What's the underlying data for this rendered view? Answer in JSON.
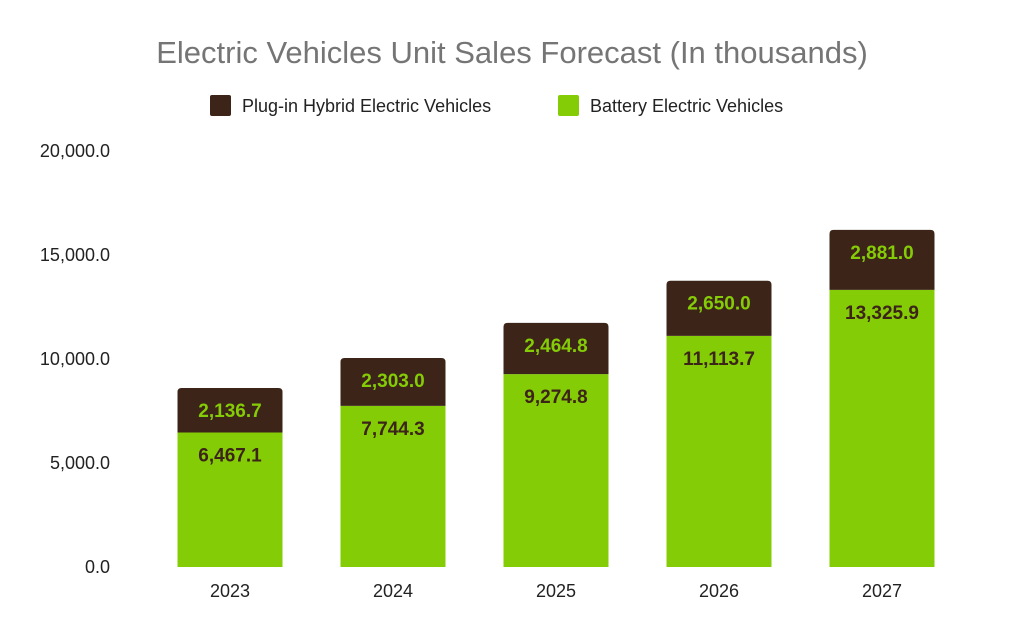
{
  "chart_data": {
    "type": "bar",
    "stacked": true,
    "title": "Electric Vehicles Unit Sales Forecast (In thousands)",
    "xlabel": "",
    "ylabel": "",
    "categories": [
      "2023",
      "2024",
      "2025",
      "2026",
      "2027"
    ],
    "series": [
      {
        "name": "Battery Electric Vehicles",
        "color": "#84cc06",
        "label_color": "#3d2418",
        "values": [
          6467.1,
          7744.3,
          9274.8,
          11113.7,
          13325.9
        ],
        "labels": [
          "6,467.1",
          "7,744.3",
          "9,274.8",
          "11,113.7",
          "13,325.9"
        ]
      },
      {
        "name": "Plug-in Hybrid Electric Vehicles",
        "color": "#3d2418",
        "label_color": "#84cc06",
        "values": [
          2136.7,
          2303.0,
          2464.8,
          2650.0,
          2881.0
        ],
        "labels": [
          "2,136.7",
          "2,303.0",
          "2,464.8",
          "2,650.0",
          "2,881.0"
        ]
      }
    ],
    "legend_order": [
      1,
      0
    ],
    "legend_position": "top",
    "ylim": [
      0,
      20000
    ],
    "yticks": [
      0,
      5000,
      10000,
      15000,
      20000
    ],
    "ytick_labels": [
      "0.0",
      "5,000.0",
      "10,000.0",
      "15,000.0",
      "20,000.0"
    ],
    "grid": false
  }
}
